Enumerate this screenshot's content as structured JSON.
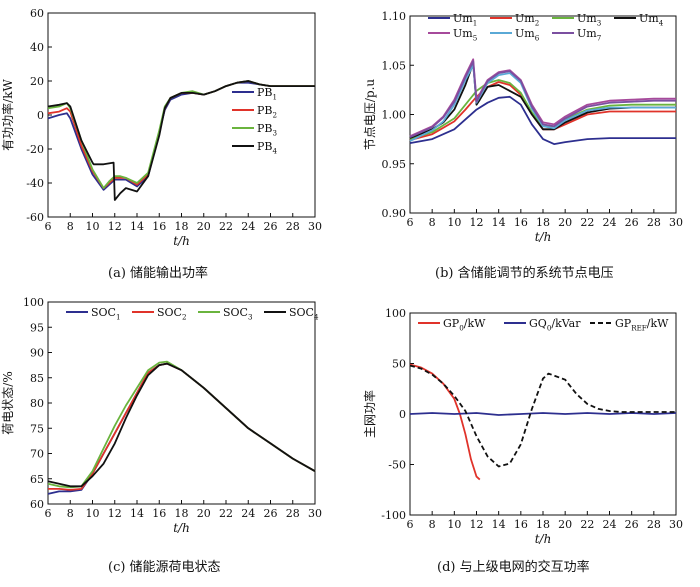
{
  "captions": {
    "a": "(a) 储能输出功率",
    "b": "(b) 含储能调节的系统节点电压",
    "c": "(c) 储能源荷电状态",
    "d": "(d) 与上级电网的交互功率"
  },
  "chart_data": [
    {
      "id": "a",
      "type": "line",
      "ylabel": "有功功率/kW",
      "xlabel": "t/h",
      "xlim": [
        6,
        30
      ],
      "ylim": [
        -60,
        60
      ],
      "xticks": [
        6,
        8,
        10,
        12,
        14,
        16,
        18,
        20,
        22,
        24,
        26,
        28,
        30
      ],
      "yticks": [
        -60,
        -40,
        -20,
        0,
        20,
        40,
        60
      ],
      "legend_position": "right-middle",
      "series": [
        {
          "name": "PB1",
          "color": "#2d2f8f",
          "x": [
            6,
            7,
            7.7,
            8,
            9,
            10,
            11,
            11.5,
            12,
            12.5,
            13,
            14,
            15,
            16,
            16.5,
            17,
            18,
            19,
            20,
            21,
            22,
            23,
            24,
            25,
            26,
            27,
            28,
            29,
            30
          ],
          "y": [
            -2,
            0,
            1,
            -2,
            -20,
            -35,
            -44,
            -41,
            -38,
            -38,
            -38,
            -42,
            -36,
            -10,
            3,
            9,
            12,
            13,
            12,
            14,
            17,
            19,
            19,
            18,
            17,
            17,
            17,
            17,
            17
          ]
        },
        {
          "name": "PB2",
          "color": "#e0332a",
          "x": [
            6,
            7,
            7.7,
            8,
            9,
            10,
            11,
            11.5,
            12,
            12.5,
            13,
            14,
            15,
            16,
            16.5,
            17,
            18,
            19,
            20,
            21,
            22,
            23,
            24,
            25,
            26,
            27,
            28,
            29,
            30
          ],
          "y": [
            1,
            2,
            4,
            2,
            -18,
            -33,
            -43,
            -40,
            -37,
            -37,
            -37,
            -41,
            -35,
            -10,
            4,
            10,
            13,
            13,
            12,
            14,
            17,
            19,
            20,
            18,
            17,
            17,
            17,
            17,
            17
          ]
        },
        {
          "name": "PB3",
          "color": "#6ab43e",
          "x": [
            6,
            7,
            7.7,
            8,
            9,
            10,
            11,
            11.5,
            12,
            12.5,
            13,
            14,
            15,
            16,
            16.5,
            17,
            18,
            19,
            20,
            21,
            22,
            23,
            24,
            25,
            26,
            27,
            28,
            29,
            30
          ],
          "y": [
            4,
            5,
            7,
            4,
            -15,
            -32,
            -43,
            -39,
            -36,
            -36,
            -37,
            -40,
            -34,
            -9,
            5,
            10,
            13,
            14,
            12,
            14,
            17,
            19,
            20,
            18,
            17,
            17,
            17,
            17,
            17
          ]
        },
        {
          "name": "PB4",
          "color": "#111111",
          "x": [
            6,
            7,
            7.7,
            8,
            9,
            10,
            10.1,
            11,
            11.9,
            12,
            12.5,
            13,
            14,
            15,
            16,
            16.5,
            17,
            18,
            19,
            20,
            21,
            22,
            23,
            24,
            25,
            26,
            27,
            28,
            29,
            30
          ],
          "y": [
            5,
            6,
            7,
            5,
            -15,
            -28,
            -29,
            -29,
            -28,
            -50,
            -46,
            -43,
            -45,
            -36,
            -12,
            4,
            10,
            13,
            13,
            12,
            14,
            17,
            19,
            20,
            18,
            17,
            17,
            17,
            17,
            17
          ]
        }
      ]
    },
    {
      "id": "b",
      "type": "line",
      "ylabel": "节点电压/p.u",
      "xlabel": "t/h",
      "xlim": [
        6,
        30
      ],
      "ylim": [
        0.9,
        1.1
      ],
      "xticks": [
        6,
        8,
        10,
        12,
        14,
        16,
        18,
        20,
        22,
        24,
        26,
        28,
        30
      ],
      "yticks": [
        "0.90",
        "0.95",
        "1.00",
        "1.05",
        "1.10"
      ],
      "legend_position": "top",
      "series": [
        {
          "name": "Um1",
          "color": "#2d2f8f",
          "x": [
            6,
            8,
            10,
            11,
            12,
            13,
            14,
            15,
            16,
            17,
            18,
            19,
            20,
            22,
            24,
            26,
            28,
            30
          ],
          "y": [
            0.971,
            0.975,
            0.985,
            0.995,
            1.005,
            1.012,
            1.017,
            1.018,
            1.01,
            0.99,
            0.975,
            0.97,
            0.972,
            0.975,
            0.976,
            0.976,
            0.976,
            0.976
          ]
        },
        {
          "name": "Um2",
          "color": "#e0332a",
          "x": [
            6,
            8,
            10,
            11,
            12,
            13,
            14,
            15,
            16,
            17,
            18,
            19,
            20,
            22,
            24,
            26,
            28,
            30
          ],
          "y": [
            0.974,
            0.98,
            0.993,
            1.005,
            1.018,
            1.028,
            1.033,
            1.03,
            1.02,
            1.0,
            0.985,
            0.985,
            0.99,
            1.0,
            1.003,
            1.003,
            1.003,
            1.003
          ]
        },
        {
          "name": "Um3",
          "color": "#6ab43e",
          "x": [
            6,
            8,
            10,
            11,
            12,
            13,
            14,
            15,
            16,
            17,
            18,
            19,
            20,
            22,
            24,
            26,
            28,
            30
          ],
          "y": [
            0.975,
            0.982,
            0.996,
            1.01,
            1.024,
            1.032,
            1.035,
            1.032,
            1.022,
            1.002,
            0.988,
            0.988,
            0.995,
            1.005,
            1.009,
            1.01,
            1.01,
            1.01
          ]
        },
        {
          "name": "Um4",
          "color": "#111111",
          "x": [
            6,
            8,
            9,
            10,
            11,
            11.7,
            12,
            12.3,
            13,
            14,
            15,
            16,
            17,
            18,
            19,
            20,
            22,
            24,
            26,
            28,
            30
          ],
          "y": [
            0.976,
            0.985,
            0.992,
            1.005,
            1.03,
            1.052,
            1.01,
            1.015,
            1.028,
            1.03,
            1.024,
            1.018,
            1.0,
            0.985,
            0.985,
            0.992,
            1.002,
            1.006,
            1.007,
            1.007,
            1.007
          ]
        },
        {
          "name": "Um5",
          "color": "#a64a9b",
          "x": [
            6,
            8,
            9,
            10,
            11,
            11.7,
            12,
            12.5,
            13,
            14,
            15,
            16,
            17,
            18,
            19,
            20,
            22,
            24,
            26,
            28,
            30
          ],
          "y": [
            0.978,
            0.988,
            0.998,
            1.015,
            1.04,
            1.056,
            1.015,
            1.025,
            1.035,
            1.043,
            1.045,
            1.035,
            1.01,
            0.992,
            0.99,
            0.998,
            1.01,
            1.014,
            1.015,
            1.016,
            1.016
          ]
        },
        {
          "name": "Um6",
          "color": "#5aa9d6",
          "x": [
            6,
            8,
            9,
            10,
            11,
            11.7,
            12,
            12.5,
            13,
            14,
            15,
            16,
            17,
            18,
            19,
            20,
            22,
            24,
            26,
            28,
            30
          ],
          "y": [
            0.973,
            0.984,
            0.993,
            1.01,
            1.035,
            1.05,
            1.012,
            1.022,
            1.032,
            1.04,
            1.042,
            1.032,
            1.006,
            0.988,
            0.986,
            0.994,
            1.004,
            1.007,
            1.007,
            1.007,
            1.007
          ]
        },
        {
          "name": "Um7",
          "color": "#7b4fa0",
          "x": [
            6,
            8,
            9,
            10,
            11,
            11.7,
            12,
            12.5,
            13,
            14,
            15,
            16,
            17,
            18,
            19,
            20,
            22,
            24,
            26,
            28,
            30
          ],
          "y": [
            0.977,
            0.987,
            0.997,
            1.013,
            1.038,
            1.054,
            1.013,
            1.024,
            1.034,
            1.042,
            1.044,
            1.034,
            1.008,
            0.99,
            0.988,
            0.996,
            1.008,
            1.012,
            1.013,
            1.014,
            1.014
          ]
        }
      ]
    },
    {
      "id": "c",
      "type": "line",
      "ylabel": "荷电状态/%",
      "xlabel": "t/h",
      "xlim": [
        6,
        30
      ],
      "ylim": [
        60,
        100
      ],
      "xticks": [
        6,
        8,
        10,
        12,
        14,
        16,
        18,
        20,
        22,
        24,
        26,
        28,
        30
      ],
      "yticks": [
        60,
        65,
        70,
        75,
        80,
        85,
        90,
        95,
        100
      ],
      "legend_position": "top",
      "series": [
        {
          "name": "SOC1",
          "color": "#2d2f8f",
          "x": [
            6,
            7,
            8,
            9,
            10,
            11,
            12,
            13,
            14,
            15,
            16,
            16.7,
            18,
            20,
            22,
            24,
            26,
            28,
            30
          ],
          "y": [
            62.0,
            62.5,
            62.5,
            62.8,
            66,
            70,
            74,
            78,
            82,
            86,
            87.5,
            87.8,
            86.5,
            83,
            79,
            75,
            72,
            69,
            66.5
          ]
        },
        {
          "name": "SOC2",
          "color": "#e0332a",
          "x": [
            6,
            7,
            8,
            9,
            10,
            11,
            12,
            13,
            14,
            15,
            16,
            16.7,
            18,
            20,
            22,
            24,
            26,
            28,
            30
          ],
          "y": [
            63.0,
            63.0,
            62.8,
            63.0,
            66,
            70,
            74,
            78,
            82,
            86,
            87.5,
            87.8,
            86.5,
            83,
            79,
            75,
            72,
            69,
            66.5
          ]
        },
        {
          "name": "SOC3",
          "color": "#6ab43e",
          "x": [
            6,
            7,
            8,
            9,
            10,
            11,
            12,
            13,
            14,
            15,
            16,
            16.7,
            18,
            20,
            22,
            24,
            26,
            28,
            30
          ],
          "y": [
            64.0,
            63.5,
            63.3,
            63.5,
            66.5,
            71,
            75.5,
            79.5,
            83,
            86.5,
            88,
            88.2,
            86.5,
            83,
            79,
            75,
            72,
            69,
            66.5
          ]
        },
        {
          "name": "SOC4",
          "color": "#111111",
          "x": [
            6,
            7,
            8,
            9,
            10,
            11,
            12,
            13,
            14,
            15,
            16,
            16.7,
            18,
            20,
            22,
            24,
            26,
            28,
            30
          ],
          "y": [
            64.5,
            64.0,
            63.5,
            63.5,
            65.5,
            68,
            72,
            77,
            81.5,
            85.5,
            87.5,
            87.8,
            86.5,
            83,
            79,
            75,
            72,
            69,
            66.5
          ]
        }
      ]
    },
    {
      "id": "d",
      "type": "line",
      "ylabel": "主网功率",
      "xlabel": "t/h",
      "xlim": [
        6,
        30
      ],
      "ylim": [
        -100,
        100
      ],
      "xticks": [
        6,
        8,
        10,
        12,
        14,
        16,
        18,
        20,
        22,
        24,
        26,
        28,
        30
      ],
      "yticks": [
        -100,
        -50,
        0,
        50,
        100
      ],
      "legend_position": "top",
      "series": [
        {
          "name": "GP0/kW",
          "color": "#e0332a",
          "dash": false,
          "x": [
            6,
            7,
            8,
            9,
            10,
            10.5,
            11,
            11.5,
            12,
            12.3
          ],
          "y": [
            49,
            46,
            40,
            30,
            15,
            0,
            -20,
            -45,
            -62,
            -65
          ]
        },
        {
          "name": "GQ0/kVar",
          "color": "#2d2f8f",
          "dash": false,
          "x": [
            6,
            8,
            10,
            12,
            14,
            16,
            18,
            20,
            22,
            24,
            26,
            28,
            30
          ],
          "y": [
            0,
            1,
            0,
            1,
            -1,
            0,
            1,
            0,
            1,
            0,
            1,
            0,
            1
          ]
        },
        {
          "name": "GPREF/kW",
          "color": "#111111",
          "dash": true,
          "x": [
            6,
            7,
            8,
            9,
            10,
            11,
            12,
            13,
            14,
            15,
            16,
            17,
            18,
            18.5,
            19,
            20,
            21,
            22,
            23,
            24,
            25,
            26,
            27,
            28,
            29,
            30
          ],
          "y": [
            48,
            45,
            39,
            30,
            18,
            3,
            -22,
            -42,
            -52,
            -49,
            -30,
            5,
            35,
            40,
            38,
            34,
            20,
            10,
            5,
            3,
            2,
            2,
            2,
            2,
            2,
            2
          ]
        }
      ]
    }
  ]
}
